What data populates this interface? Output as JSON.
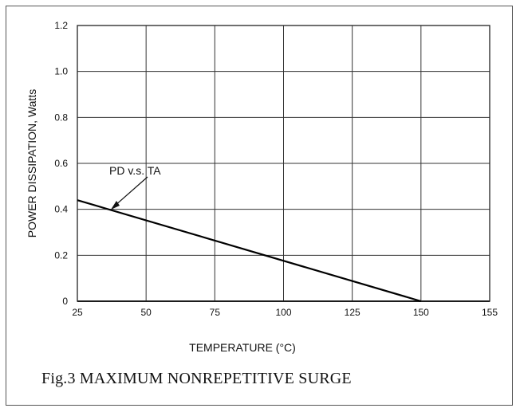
{
  "chart_data": {
    "type": "line",
    "title": "",
    "xlabel": "TEMPERATURE (°C)",
    "ylabel": "POWER DISSIPATION, Watts",
    "x_ticks": [
      "25",
      "50",
      "75",
      "100",
      "125",
      "150",
      "155"
    ],
    "y_ticks": [
      "0",
      "0.2",
      "0.4",
      "0.6",
      "0.8",
      "1.0",
      "1.2"
    ],
    "ylim": [
      0,
      1.2
    ],
    "grid": true,
    "series": [
      {
        "name": "PD v.s. TA",
        "x": [
          25,
          150
        ],
        "y": [
          0.44,
          0.0
        ]
      }
    ],
    "annotation": "PD v.s. TA"
  },
  "caption": "Fig.3 MAXIMUM NONREPETITIVE SURGE"
}
